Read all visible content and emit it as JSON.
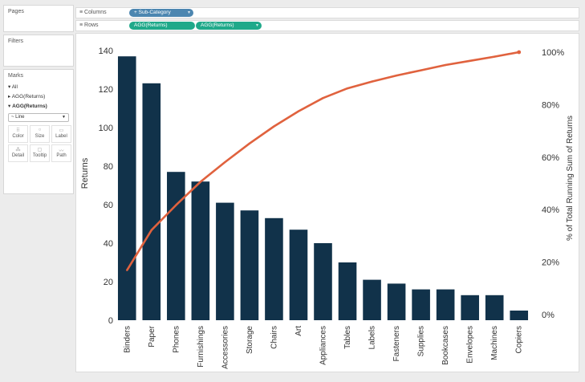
{
  "panels": {
    "pages": "Pages",
    "filters": "Filters",
    "marks": "Marks"
  },
  "shelves": {
    "columns_label": "Columns",
    "rows_label": "Rows",
    "columns_pill": "Sub-Category",
    "rows_pill_1": "AGG(Returns)",
    "rows_pill_2": "AGG(Returns)"
  },
  "marks": {
    "all": "All",
    "agg1": "AGG(Returns)",
    "agg2": "AGG(Returns)",
    "mark_type": "Line",
    "buttons": [
      "Color",
      "Size",
      "Label",
      "Detail",
      "Tooltip",
      "Path"
    ]
  },
  "colors": {
    "bar": "#11324a",
    "line": "#e0623e",
    "pill_blue": "#4c86b0",
    "pill_green": "#1fa98a"
  },
  "chart_data": {
    "type": "bar",
    "categories": [
      "Binders",
      "Paper",
      "Phones",
      "Furnishings",
      "Accessories",
      "Storage",
      "Chairs",
      "Art",
      "Appliances",
      "Tables",
      "Labels",
      "Fasteners",
      "Supplies",
      "Bookcases",
      "Envelopes",
      "Machines",
      "Copiers"
    ],
    "values": [
      137,
      123,
      77,
      72,
      61,
      57,
      53,
      47,
      40,
      30,
      21,
      19,
      16,
      16,
      13,
      13,
      5
    ],
    "ylabel": "Returns",
    "ylim": [
      0,
      140
    ],
    "yticks": [
      0,
      20,
      40,
      60,
      80,
      100,
      120,
      140
    ],
    "secondary": {
      "type": "line",
      "ylabel": "% of Total Running Sum of Returns",
      "ylim": [
        0,
        1
      ],
      "yticks": [
        "0%",
        "20%",
        "40%",
        "60%",
        "80%",
        "100%"
      ],
      "values": [
        0.169,
        0.322,
        0.417,
        0.506,
        0.581,
        0.652,
        0.717,
        0.775,
        0.825,
        0.862,
        0.888,
        0.911,
        0.931,
        0.951,
        0.967,
        0.983,
        1.0
      ]
    }
  }
}
